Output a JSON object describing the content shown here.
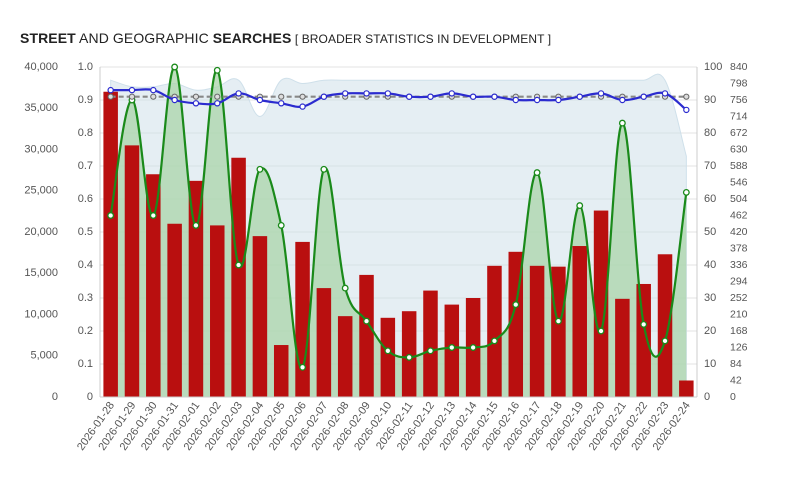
{
  "title": {
    "part1": "STREET",
    "part2": " AND GEOGRAPHIC ",
    "part3": "SEARCHES",
    "part4": "  [ BROADER STATISTICS IN DEVELOPMENT ]"
  },
  "colors": {
    "bar": "#b90f0f",
    "green": "#1a8a1a",
    "greenFill": "#a9d4a9",
    "blue": "#2b2bcf",
    "lightBlue": "#cfe0ea",
    "gray": "#888888"
  },
  "chart_data": {
    "type": "bar",
    "categories": [
      "2026-01-28",
      "2026-01-29",
      "2026-01-30",
      "2026-01-31",
      "2026-02-01",
      "2026-02-02",
      "2026-02-03",
      "2026-02-04",
      "2026-02-05",
      "2026-02-06",
      "2026-02-07",
      "2026-02-08",
      "2026-02-09",
      "2026-02-10",
      "2026-02-11",
      "2026-02-12",
      "2026-02-13",
      "2026-02-14",
      "2026-02-15",
      "2026-02-16",
      "2026-02-17",
      "2026-02-18",
      "2026-02-19",
      "2026-02-20",
      "2026-02-21",
      "2026-02-22",
      "2026-02-23",
      "2026-02-24"
    ],
    "axes": {
      "left": {
        "ticks": [
          "0",
          "5,000",
          "10,000",
          "15,000",
          "20,000",
          "25,000",
          "30,000",
          "35,000",
          "40,000"
        ],
        "range": [
          0,
          40000
        ]
      },
      "left2": {
        "ticks": [
          "0",
          "0.1",
          "0.2",
          "0.3",
          "0.4",
          "0.5",
          "0.6",
          "0.7",
          "0.8",
          "0.9",
          "1.0"
        ],
        "range": [
          0,
          1
        ]
      },
      "right": {
        "ticks": [
          "0",
          "10",
          "20",
          "30",
          "40",
          "50",
          "60",
          "70",
          "80",
          "90",
          "100"
        ],
        "range": [
          0,
          100
        ]
      },
      "right2": {
        "ticks": [
          "0",
          "42",
          "84",
          "126",
          "168",
          "210",
          "252",
          "294",
          "336",
          "378",
          "420",
          "462",
          "504",
          "546",
          "588",
          "630",
          "672",
          "714",
          "756",
          "798",
          "840"
        ],
        "range": [
          0,
          840
        ]
      }
    },
    "grid": true,
    "series": [
      {
        "type": "bar",
        "axis": "left",
        "values": [
          37000,
          30500,
          27000,
          21000,
          26200,
          20800,
          29000,
          19500,
          6300,
          18800,
          13200,
          9800,
          14800,
          9600,
          10400,
          12900,
          11200,
          12000,
          15900,
          17600,
          15900,
          15800,
          18300,
          22600,
          11900,
          13700,
          17300,
          2000
        ]
      },
      {
        "type": "area",
        "axis": "left2",
        "values": [
          0.55,
          0.9,
          0.55,
          1.0,
          0.52,
          0.99,
          0.4,
          0.69,
          0.52,
          0.09,
          0.69,
          0.33,
          0.23,
          0.14,
          0.12,
          0.14,
          0.15,
          0.15,
          0.17,
          0.28,
          0.68,
          0.23,
          0.58,
          0.2,
          0.83,
          0.22,
          0.17,
          0.62
        ]
      },
      {
        "type": "line",
        "axis": "right",
        "values": [
          93,
          93,
          93,
          90,
          89,
          89,
          92,
          90,
          89,
          88,
          91,
          92,
          92,
          92,
          91,
          91,
          92,
          91,
          91,
          90,
          90,
          90,
          91,
          92,
          90,
          91,
          92,
          87
        ]
      },
      {
        "type": "line",
        "axis": "right",
        "values": [
          91,
          91,
          91,
          91,
          91,
          91,
          91,
          91,
          91,
          91,
          91,
          91,
          91,
          91,
          91,
          91,
          91,
          91,
          91,
          91,
          91,
          91,
          91,
          91,
          91,
          91,
          91,
          91
        ]
      },
      {
        "type": "area",
        "axis": "right",
        "values": [
          96,
          94,
          94,
          95,
          93,
          94,
          96,
          85,
          96,
          95,
          96,
          96,
          96,
          96,
          96,
          96,
          96,
          96,
          96,
          96,
          96,
          96,
          96,
          96,
          96,
          96,
          96,
          73
        ]
      }
    ]
  }
}
